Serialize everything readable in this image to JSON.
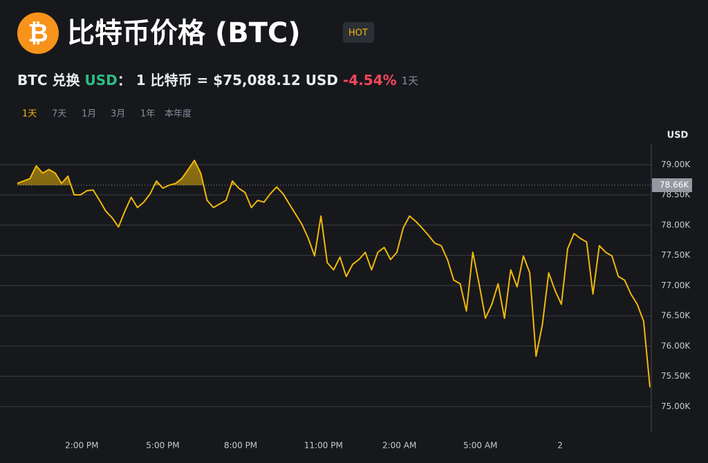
{
  "header": {
    "logo": "₿",
    "title": "比特币价格 (BTC)",
    "badge": "HOT",
    "pair_prefix": "BTC 兑换",
    "pair_quote": "USD",
    "pair_sep": "：",
    "price_text": "1 比特币 = $75,088.12 USD",
    "change": "-4.54%",
    "change_period": "1天",
    "tabs": [
      "1天",
      "7天",
      "1月",
      "3月",
      "1年",
      "本年度"
    ]
  },
  "chart_data": {
    "type": "line",
    "y_unit": "USD",
    "color": "#f0b90b",
    "grid": true,
    "values": [
      78690,
      78730,
      78770,
      78980,
      78860,
      78920,
      78860,
      78690,
      78810,
      78500,
      78500,
      78570,
      78580,
      78410,
      78230,
      78120,
      77970,
      78230,
      78460,
      78290,
      78380,
      78520,
      78730,
      78610,
      78660,
      78690,
      78770,
      78920,
      79070,
      78860,
      78410,
      78290,
      78350,
      78410,
      78730,
      78610,
      78540,
      78290,
      78410,
      78380,
      78520,
      78630,
      78520,
      78350,
      78180,
      78010,
      77780,
      77490,
      78150,
      77380,
      77260,
      77470,
      77150,
      77350,
      77430,
      77550,
      77260,
      77550,
      77630,
      77430,
      77550,
      77950,
      78150,
      78060,
      77950,
      77830,
      77700,
      77660,
      77430,
      77090,
      77030,
      76580,
      77550,
      77030,
      76460,
      76690,
      77030,
      76460,
      77260,
      76980,
      77490,
      77210,
      75830,
      76350,
      77210,
      76920,
      76690,
      77610,
      77860,
      77780,
      77720,
      76860,
      77660,
      77550,
      77490,
      77150,
      77090,
      76860,
      76690,
      76410,
      75320
    ],
    "xlim": [
      0,
      100
    ],
    "xticks": [
      {
        "value": 10.2,
        "label": "2:00 PM"
      },
      {
        "value": 23,
        "label": "5:00 PM"
      },
      {
        "value": 35.3,
        "label": "8:00 PM"
      },
      {
        "value": 48.4,
        "label": "11:00 PM"
      },
      {
        "value": 60.4,
        "label": "2:00 AM"
      },
      {
        "value": 73.2,
        "label": "5:00 AM"
      },
      {
        "value": 85.8,
        "label": "2"
      }
    ],
    "ylim": [
      74580,
      79380
    ],
    "yticks": [
      {
        "value": 75000,
        "label": "75.00K"
      },
      {
        "value": 75500,
        "label": "75.50K"
      },
      {
        "value": 76000,
        "label": "76.00K"
      },
      {
        "value": 76500,
        "label": "76.50K"
      },
      {
        "value": 77000,
        "label": "77.00K"
      },
      {
        "value": 77500,
        "label": "77.50K"
      },
      {
        "value": 78000,
        "label": "78.00K"
      },
      {
        "value": 78500,
        "label": "78.50K"
      },
      {
        "value": 79000,
        "label": "79.00K"
      }
    ],
    "baseline": {
      "value": 78660,
      "label": "78.66K"
    }
  }
}
